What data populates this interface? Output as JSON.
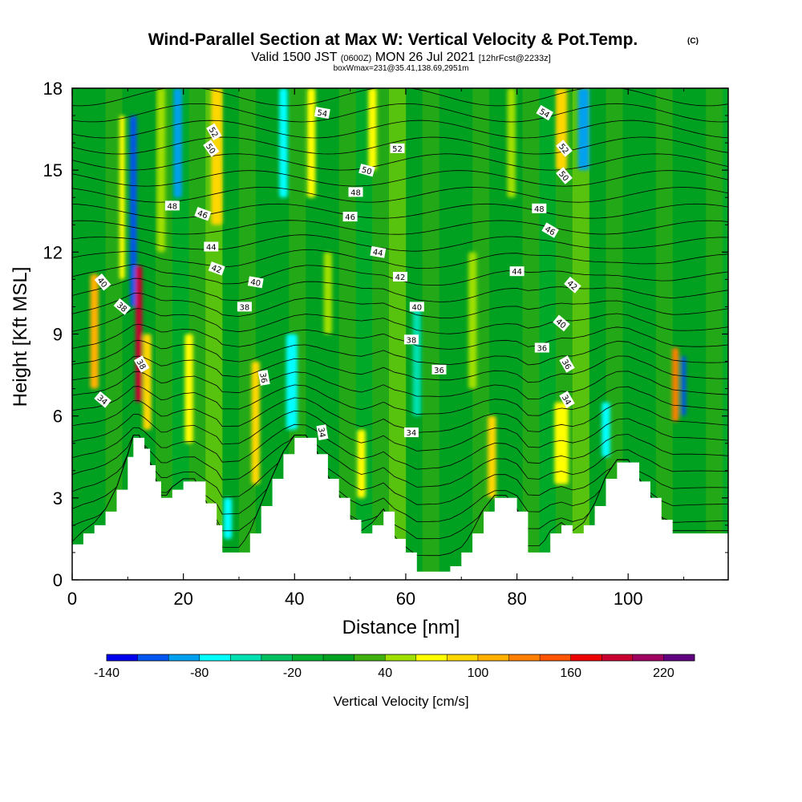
{
  "header": {
    "title": "Wind-Parallel Section at Max W: Vertical Velocity & Pot.Temp.",
    "copyright": "(C)",
    "valid_prefix": "Valid 1500 JST",
    "valid_utc": "(0600Z)",
    "valid_date": "MON 26 Jul 2021",
    "forecast": "[12hrFcst@2233z]",
    "boxinfo": "boxWmax=231@35.41,138.69,2951m"
  },
  "chart_data": {
    "type": "heatmap",
    "xlabel": "Distance [nm]",
    "ylabel": "Height [Kft MSL]",
    "xlim": [
      0,
      118
    ],
    "ylim": [
      0,
      18
    ],
    "xticks": [
      "0",
      "20",
      "40",
      "60",
      "80",
      "100"
    ],
    "yticks": [
      "0",
      "3",
      "6",
      "9",
      "12",
      "15",
      "18"
    ],
    "terrain": {
      "x": [
        0,
        2,
        4,
        6,
        8,
        10,
        11,
        12,
        13,
        14,
        15,
        16,
        17,
        18,
        20,
        22,
        24,
        26,
        27,
        28,
        30,
        32,
        34,
        36,
        38,
        40,
        42,
        44,
        46,
        48,
        50,
        52,
        54,
        56,
        58,
        60,
        62,
        64,
        66,
        68,
        70,
        72,
        74,
        76,
        78,
        80,
        82,
        84,
        86,
        88,
        90,
        92,
        94,
        96,
        98,
        100,
        102,
        104,
        106,
        108,
        109,
        110,
        112,
        114,
        116,
        118
      ],
      "height_kft": [
        1.3,
        1.7,
        2.0,
        2.5,
        3.3,
        4.5,
        5.2,
        5.2,
        4.8,
        4.2,
        3.6,
        3.0,
        3.0,
        3.3,
        3.6,
        3.6,
        2.8,
        2.0,
        1.0,
        1.0,
        1.0,
        1.7,
        2.7,
        3.7,
        4.6,
        5.2,
        5.2,
        4.6,
        3.7,
        3.0,
        2.2,
        1.7,
        2.0,
        2.5,
        1.5,
        1.0,
        0.3,
        0.3,
        0.3,
        0.5,
        1.0,
        1.7,
        2.5,
        3.0,
        3.0,
        2.5,
        1.0,
        1.0,
        1.7,
        2.0,
        1.7,
        2.0,
        2.7,
        3.7,
        4.3,
        4.3,
        3.6,
        3.0,
        2.2,
        1.7,
        1.7,
        1.7,
        1.7,
        1.7,
        1.7,
        1.7
      ]
    },
    "columns": [
      {
        "x": 4,
        "w": 1.5,
        "ylo": 7.0,
        "yhi": 11.2,
        "value": 110
      },
      {
        "x": 9,
        "w": 1.0,
        "ylo": 11.0,
        "yhi": 17.0,
        "value": 60
      },
      {
        "x": 11,
        "w": 1.2,
        "ylo": 10.0,
        "yhi": 17.0,
        "value": -110
      },
      {
        "x": 12,
        "w": 1.2,
        "ylo": 6.5,
        "yhi": 11.5,
        "value": 190
      },
      {
        "x": 13.5,
        "w": 1.5,
        "ylo": 5.5,
        "yhi": 9.0,
        "value": 90
      },
      {
        "x": 16,
        "w": 1.5,
        "ylo": 12.0,
        "yhi": 18.0,
        "value": 50
      },
      {
        "x": 19,
        "w": 1.5,
        "ylo": 14.0,
        "yhi": 18.0,
        "value": -90
      },
      {
        "x": 21,
        "w": 1.5,
        "ylo": 5.0,
        "yhi": 9.0,
        "value": 60
      },
      {
        "x": 26,
        "w": 2.0,
        "ylo": 13.0,
        "yhi": 18.0,
        "value": 80
      },
      {
        "x": 28,
        "w": 1.5,
        "ylo": 1.5,
        "yhi": 3.0,
        "value": -80
      },
      {
        "x": 33,
        "w": 1.5,
        "ylo": 3.5,
        "yhi": 8.0,
        "value": 80
      },
      {
        "x": 38,
        "w": 1.5,
        "ylo": 14.0,
        "yhi": 18.0,
        "value": -70
      },
      {
        "x": 39.5,
        "w": 2.0,
        "ylo": 5.5,
        "yhi": 9.0,
        "value": -70
      },
      {
        "x": 43,
        "w": 1.5,
        "ylo": 14.0,
        "yhi": 18.0,
        "value": 70
      },
      {
        "x": 46,
        "w": 1.5,
        "ylo": 9.0,
        "yhi": 12.0,
        "value": 50
      },
      {
        "x": 52,
        "w": 1.5,
        "ylo": 3.0,
        "yhi": 5.5,
        "value": 70
      },
      {
        "x": 54,
        "w": 1.5,
        "ylo": 15.0,
        "yhi": 18.0,
        "value": 60
      },
      {
        "x": 62,
        "w": 1.5,
        "ylo": 6.0,
        "yhi": 10.0,
        "value": -50
      },
      {
        "x": 72,
        "w": 1.5,
        "ylo": 7.0,
        "yhi": 12.0,
        "value": 40
      },
      {
        "x": 75.5,
        "w": 1.5,
        "ylo": 3.0,
        "yhi": 6.0,
        "value": 90
      },
      {
        "x": 79,
        "w": 1.5,
        "ylo": 14.0,
        "yhi": 18.0,
        "value": 40
      },
      {
        "x": 88,
        "w": 2.5,
        "ylo": 3.5,
        "yhi": 6.5,
        "value": 60
      },
      {
        "x": 88,
        "w": 2.0,
        "ylo": 15.0,
        "yhi": 18.0,
        "value": 80
      },
      {
        "x": 92,
        "w": 2.0,
        "ylo": 15.0,
        "yhi": 18.0,
        "value": -90
      },
      {
        "x": 96,
        "w": 1.5,
        "ylo": 4.5,
        "yhi": 6.5,
        "value": -70
      },
      {
        "x": 108.5,
        "w": 1.2,
        "ylo": 5.8,
        "yhi": 8.5,
        "value": 120
      },
      {
        "x": 110,
        "w": 0.8,
        "ylo": 6.0,
        "yhi": 8.2,
        "value": -120
      }
    ],
    "isentrope_labels": [
      {
        "text": "54",
        "x": 45,
        "y": 17.1,
        "angle": 10
      },
      {
        "text": "54",
        "x": 85,
        "y": 17.1,
        "angle": 30
      },
      {
        "text": "52",
        "x": 25.5,
        "y": 16.4,
        "angle": 60
      },
      {
        "text": "52",
        "x": 58.5,
        "y": 15.8,
        "angle": 0
      },
      {
        "text": "52",
        "x": 88.5,
        "y": 15.8,
        "angle": 50
      },
      {
        "text": "50",
        "x": 25,
        "y": 15.8,
        "angle": 55
      },
      {
        "text": "50",
        "x": 53,
        "y": 15.0,
        "angle": 15
      },
      {
        "text": "50",
        "x": 88.5,
        "y": 14.8,
        "angle": 50
      },
      {
        "text": "48",
        "x": 18,
        "y": 13.7,
        "angle": 0
      },
      {
        "text": "48",
        "x": 51,
        "y": 14.2,
        "angle": 0
      },
      {
        "text": "48",
        "x": 84,
        "y": 13.6,
        "angle": 0
      },
      {
        "text": "46",
        "x": 23.5,
        "y": 13.4,
        "angle": 20
      },
      {
        "text": "46",
        "x": 50,
        "y": 13.3,
        "angle": 0
      },
      {
        "text": "46",
        "x": 86,
        "y": 12.8,
        "angle": 30
      },
      {
        "text": "44",
        "x": 25,
        "y": 12.2,
        "angle": 0
      },
      {
        "text": "44",
        "x": 55,
        "y": 12.0,
        "angle": 10
      },
      {
        "text": "44",
        "x": 80,
        "y": 11.3,
        "angle": 0
      },
      {
        "text": "42",
        "x": 26,
        "y": 11.4,
        "angle": 20
      },
      {
        "text": "42",
        "x": 59,
        "y": 11.1,
        "angle": 0
      },
      {
        "text": "42",
        "x": 90,
        "y": 10.8,
        "angle": 40
      },
      {
        "text": "40",
        "x": 5.5,
        "y": 10.9,
        "angle": 50
      },
      {
        "text": "40",
        "x": 33,
        "y": 10.9,
        "angle": 10
      },
      {
        "text": "40",
        "x": 62,
        "y": 10.0,
        "angle": 0
      },
      {
        "text": "40",
        "x": 88,
        "y": 9.4,
        "angle": 40
      },
      {
        "text": "38",
        "x": 9,
        "y": 10.0,
        "angle": 40
      },
      {
        "text": "38",
        "x": 31,
        "y": 10.0,
        "angle": 0
      },
      {
        "text": "38",
        "x": 61,
        "y": 8.8,
        "angle": 0
      },
      {
        "text": "38",
        "x": 12.5,
        "y": 7.9,
        "angle": 60
      },
      {
        "text": "36",
        "x": 34.5,
        "y": 7.4,
        "angle": 80
      },
      {
        "text": "36",
        "x": 66,
        "y": 7.7,
        "angle": 0
      },
      {
        "text": "36",
        "x": 84.5,
        "y": 8.5,
        "angle": 0
      },
      {
        "text": "36",
        "x": 89,
        "y": 7.9,
        "angle": 60
      },
      {
        "text": "34",
        "x": 5.5,
        "y": 6.6,
        "angle": 40
      },
      {
        "text": "34",
        "x": 45,
        "y": 5.4,
        "angle": 80
      },
      {
        "text": "34",
        "x": 61,
        "y": 5.4,
        "angle": 0
      },
      {
        "text": "34",
        "x": 89,
        "y": 6.6,
        "angle": 60
      }
    ],
    "colorbar": {
      "label": "Vertical Velocity [cm/s]",
      "min": -140,
      "max": 240,
      "step": 20,
      "tick_labels": [
        "-140",
        "-80",
        "-20",
        "40",
        "100",
        "160",
        "220"
      ],
      "colors": [
        "#0000ee",
        "#0055ee",
        "#00a0f0",
        "#00ffff",
        "#00e0b0",
        "#00c060",
        "#00b030",
        "#00a020",
        "#40b010",
        "#a0e000",
        "#ffff00",
        "#ffd700",
        "#ffb000",
        "#ff8000",
        "#ff5500",
        "#ee0000",
        "#c80030",
        "#a00060",
        "#600080"
      ]
    }
  }
}
